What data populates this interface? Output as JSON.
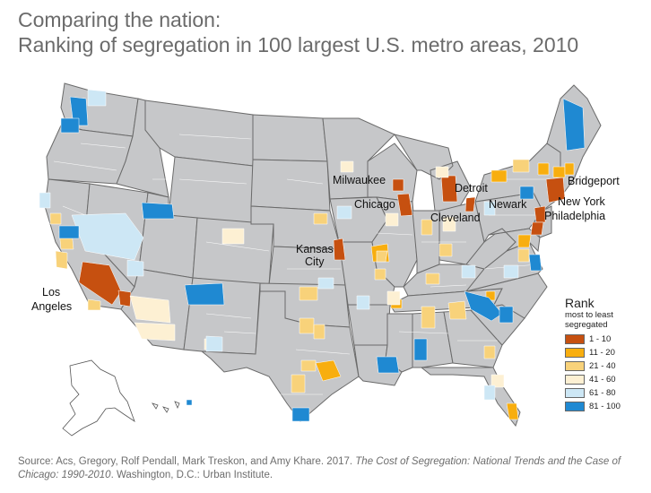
{
  "title": {
    "line1": "Comparing the nation:",
    "line2": "Ranking of segregation in 100 largest U.S. metro areas, 2010"
  },
  "city_labels": [
    "Milwaukee",
    "Detroit",
    "Bridgeport",
    "Chicago",
    "Cleveland",
    "Newark",
    "New York",
    "Philadelphia",
    "Kansas",
    "City",
    "Los",
    "Angeles"
  ],
  "legend": {
    "title": "Rank",
    "subtitle_line1": "most to least",
    "subtitle_line2": "segregated",
    "items": [
      {
        "label": "1 - 10",
        "color": "#c65010"
      },
      {
        "label": "11 - 20",
        "color": "#f8ae0f"
      },
      {
        "label": "21 - 40",
        "color": "#f8d27a"
      },
      {
        "label": "41 - 60",
        "color": "#fdf0d3"
      },
      {
        "label": "61 - 80",
        "color": "#cde7f5"
      },
      {
        "label": "81 - 100",
        "color": "#1f89d2"
      }
    ]
  },
  "source": {
    "prefix": "Source: Acs, Gregory, Rolf Pendall, Mark Treskon, and Amy Khare. 2017. ",
    "italic": "The Cost of Segregation: National Trends and the Case of Chicago: 1990-2010",
    "suffix": ". Washington, D.C.: Urban Institute."
  },
  "colors": {
    "state_fill": "#c6c7c9",
    "border": "#6a6a6a",
    "title": "#6b6b6b"
  }
}
